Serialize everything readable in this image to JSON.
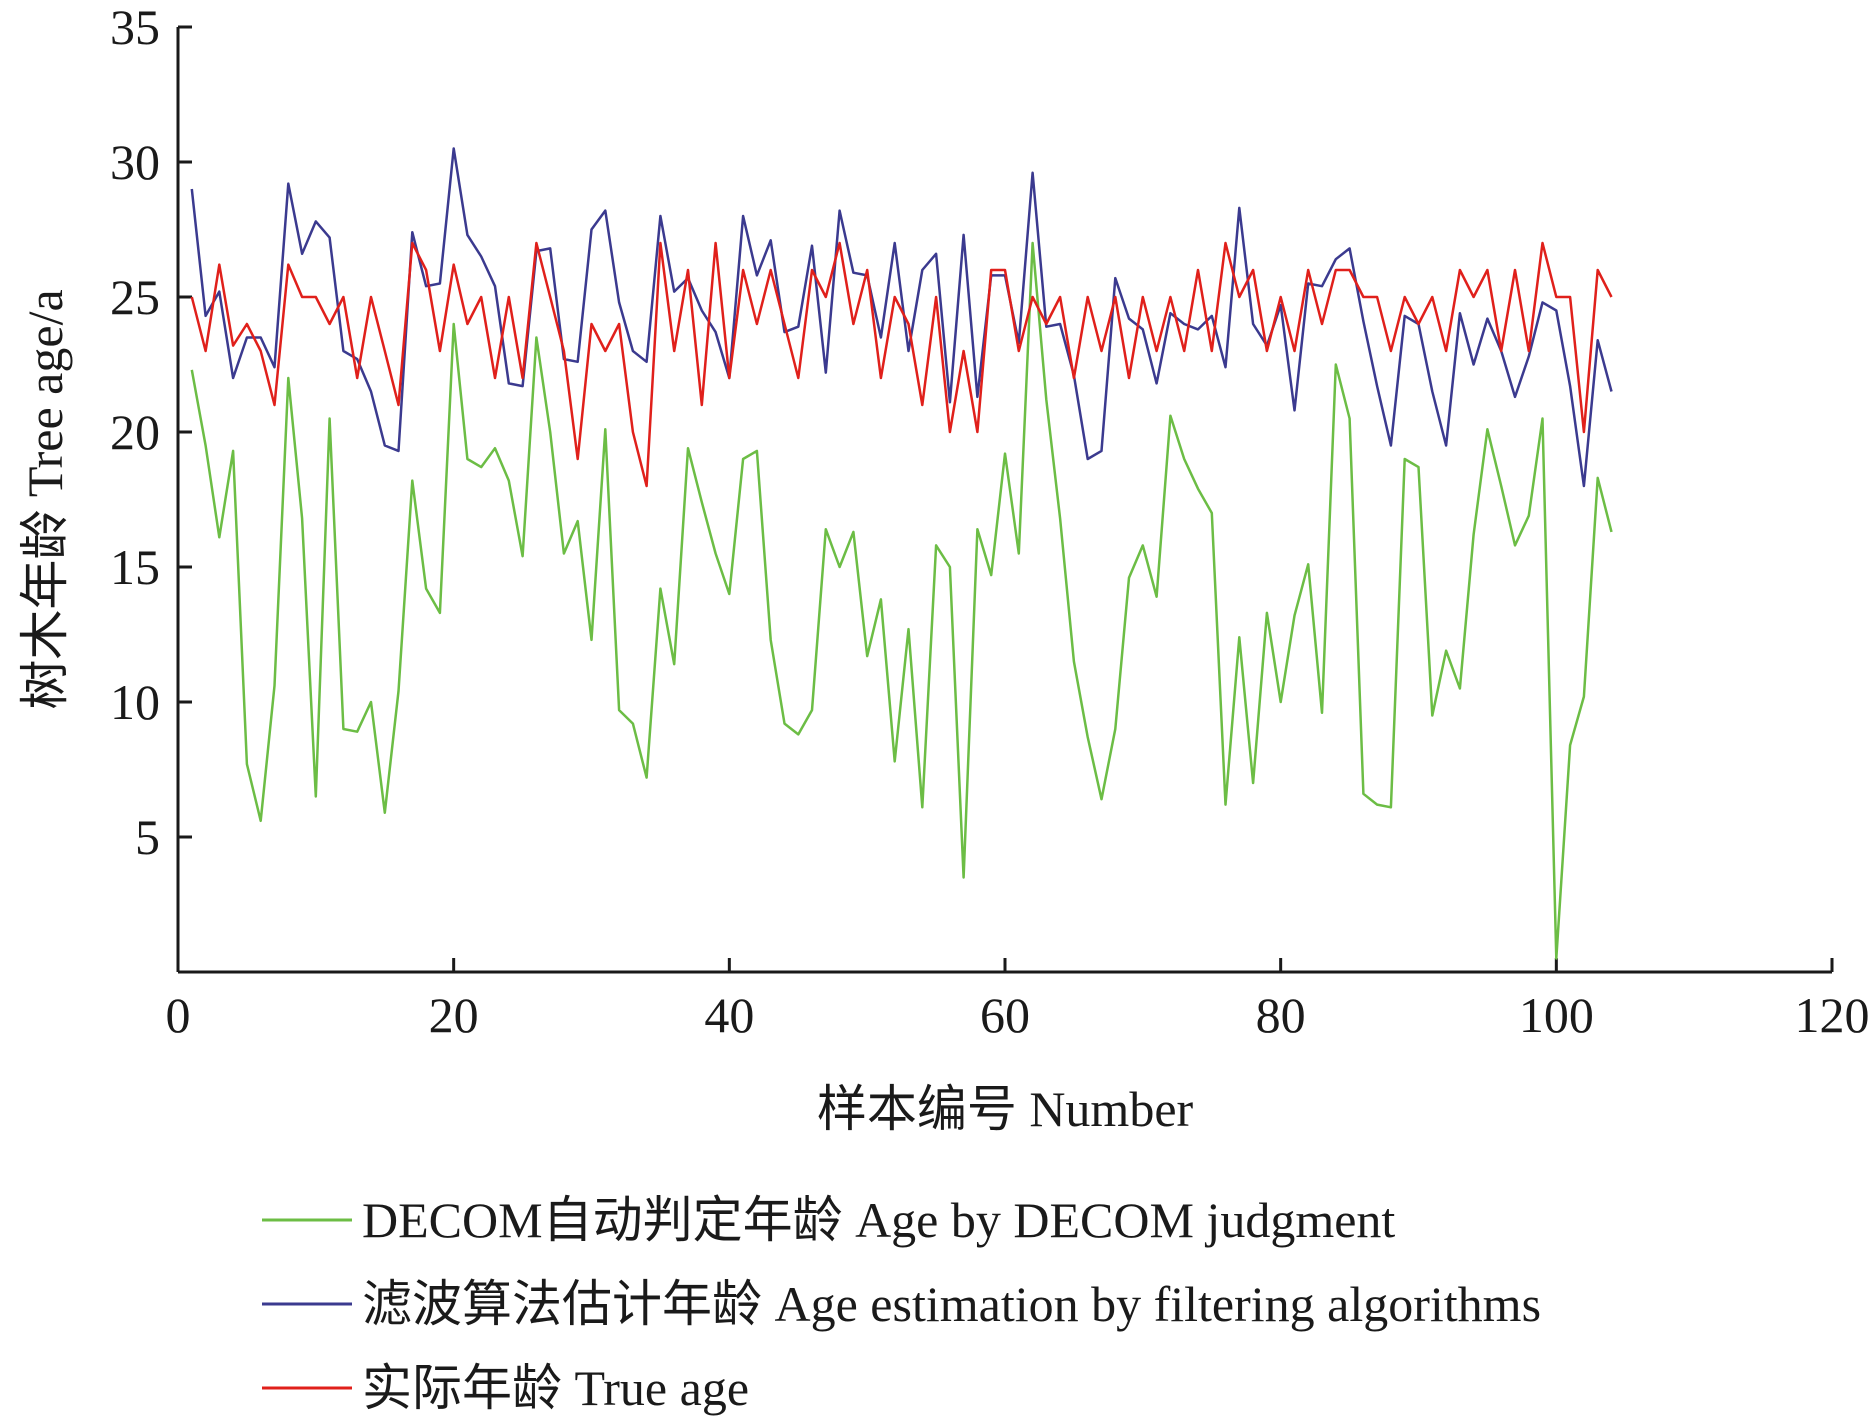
{
  "chart_data": {
    "type": "line",
    "title": "",
    "xlabel": "样本编号  Number",
    "ylabel": "树木年龄  Tree age/a",
    "xlim": [
      0,
      120
    ],
    "ylim": [
      0,
      35
    ],
    "xticks": [
      0,
      20,
      40,
      60,
      80,
      100,
      120
    ],
    "yticks": [
      5,
      10,
      15,
      20,
      25,
      30,
      35
    ],
    "grid": false,
    "legend_position": "bottom",
    "x": [
      1,
      2,
      3,
      4,
      5,
      6,
      7,
      8,
      9,
      10,
      11,
      12,
      13,
      14,
      15,
      16,
      17,
      18,
      19,
      20,
      21,
      22,
      23,
      24,
      25,
      26,
      27,
      28,
      29,
      30,
      31,
      32,
      33,
      34,
      35,
      36,
      37,
      38,
      39,
      40,
      41,
      42,
      43,
      44,
      45,
      46,
      47,
      48,
      49,
      50,
      51,
      52,
      53,
      54,
      55,
      56,
      57,
      58,
      59,
      60,
      61,
      62,
      63,
      64,
      65,
      66,
      67,
      68,
      69,
      70,
      71,
      72,
      73,
      74,
      75,
      76,
      77,
      78,
      79,
      80,
      81,
      82,
      83,
      84,
      85,
      86,
      87,
      88,
      89,
      90,
      91,
      92,
      93,
      94,
      95,
      96,
      97,
      98,
      99,
      100,
      101,
      102,
      103,
      104
    ],
    "series": [
      {
        "name": "DECOM自动判定年龄  Age by DECOM judgment",
        "color": "#6cbd45",
        "values": [
          22.3,
          19.5,
          16.1,
          19.3,
          7.7,
          5.6,
          10.6,
          22.0,
          16.8,
          6.5,
          20.5,
          9.0,
          8.9,
          10.0,
          5.9,
          10.4,
          18.2,
          14.2,
          13.3,
          24.0,
          19.0,
          18.7,
          19.4,
          18.2,
          15.4,
          23.5,
          20.0,
          15.5,
          16.7,
          12.3,
          20.1,
          9.7,
          9.2,
          7.2,
          14.2,
          11.4,
          19.4,
          17.4,
          15.5,
          14.0,
          19.0,
          19.3,
          12.3,
          9.2,
          8.8,
          9.7,
          16.4,
          15.0,
          16.3,
          11.7,
          13.8,
          7.8,
          12.7,
          6.1,
          15.8,
          15.0,
          3.5,
          16.4,
          14.7,
          19.2,
          15.5,
          27.0,
          21.2,
          16.8,
          11.5,
          8.7,
          6.4,
          9.0,
          14.6,
          15.8,
          13.9,
          20.6,
          19.0,
          17.9,
          17.0,
          6.2,
          12.4,
          7.0,
          13.3,
          10.0,
          13.2,
          15.1,
          9.6,
          22.5,
          20.5,
          6.6,
          6.2,
          6.1,
          19.0,
          18.7,
          9.5,
          11.9,
          10.5,
          16.2,
          20.1,
          18.0,
          15.8,
          16.9,
          20.5,
          0.5,
          8.4,
          10.2,
          18.3,
          16.3
        ]
      },
      {
        "name": "滤波算法估计年龄  Age estimation by filtering algorithms",
        "color": "#3b3a8f",
        "values": [
          29.0,
          24.3,
          25.2,
          22.0,
          23.5,
          23.5,
          22.4,
          29.2,
          26.6,
          27.8,
          27.2,
          23.0,
          22.7,
          21.5,
          19.5,
          19.3,
          27.4,
          25.4,
          25.5,
          30.5,
          27.3,
          26.5,
          25.4,
          21.8,
          21.7,
          26.7,
          26.8,
          22.7,
          22.6,
          27.5,
          28.2,
          24.8,
          23.0,
          22.6,
          28.0,
          25.2,
          25.7,
          24.5,
          23.7,
          22.0,
          28.0,
          25.8,
          27.1,
          23.7,
          23.9,
          26.9,
          22.2,
          28.2,
          25.9,
          25.8,
          23.5,
          27.0,
          23.0,
          26.0,
          26.6,
          21.1,
          27.3,
          21.3,
          25.8,
          25.8,
          23.3,
          29.6,
          23.9,
          24.0,
          22.1,
          19.0,
          19.3,
          25.7,
          24.2,
          23.8,
          21.8,
          24.4,
          24.0,
          23.8,
          24.3,
          22.4,
          28.3,
          24.0,
          23.2,
          24.7,
          20.8,
          25.5,
          25.4,
          26.4,
          26.8,
          24.1,
          21.7,
          19.5,
          24.3,
          24.0,
          21.5,
          19.5,
          24.4,
          22.5,
          24.2,
          23.0,
          21.3,
          22.8,
          24.8,
          24.5,
          21.7,
          18.0,
          23.4,
          21.5
        ]
      },
      {
        "name": "实际年龄  True age",
        "color": "#e0201b",
        "values": [
          25.0,
          23.0,
          26.2,
          23.2,
          24.0,
          23.0,
          21.0,
          26.2,
          25.0,
          25.0,
          24.0,
          25.0,
          22.0,
          25.0,
          23.0,
          21.0,
          27.0,
          26.0,
          23.0,
          26.2,
          24.0,
          25.0,
          22.0,
          25.0,
          22.0,
          27.0,
          25.0,
          23.0,
          19.0,
          24.0,
          23.0,
          24.0,
          20.0,
          18.0,
          27.0,
          23.0,
          26.0,
          21.0,
          27.0,
          22.0,
          26.0,
          24.0,
          26.0,
          24.0,
          22.0,
          26.0,
          25.0,
          27.0,
          24.0,
          26.0,
          22.0,
          25.0,
          24.0,
          21.0,
          25.0,
          20.0,
          23.0,
          20.0,
          26.0,
          26.0,
          23.0,
          25.0,
          24.0,
          25.0,
          22.0,
          25.0,
          23.0,
          25.0,
          22.0,
          25.0,
          23.0,
          25.0,
          23.0,
          26.0,
          23.0,
          27.0,
          25.0,
          26.0,
          23.0,
          25.0,
          23.0,
          26.0,
          24.0,
          26.0,
          26.0,
          25.0,
          25.0,
          23.0,
          25.0,
          24.0,
          25.0,
          23.0,
          26.0,
          25.0,
          26.0,
          23.0,
          26.0,
          23.0,
          27.0,
          25.0,
          25.0,
          20.0,
          26.0,
          25.0
        ]
      }
    ]
  }
}
